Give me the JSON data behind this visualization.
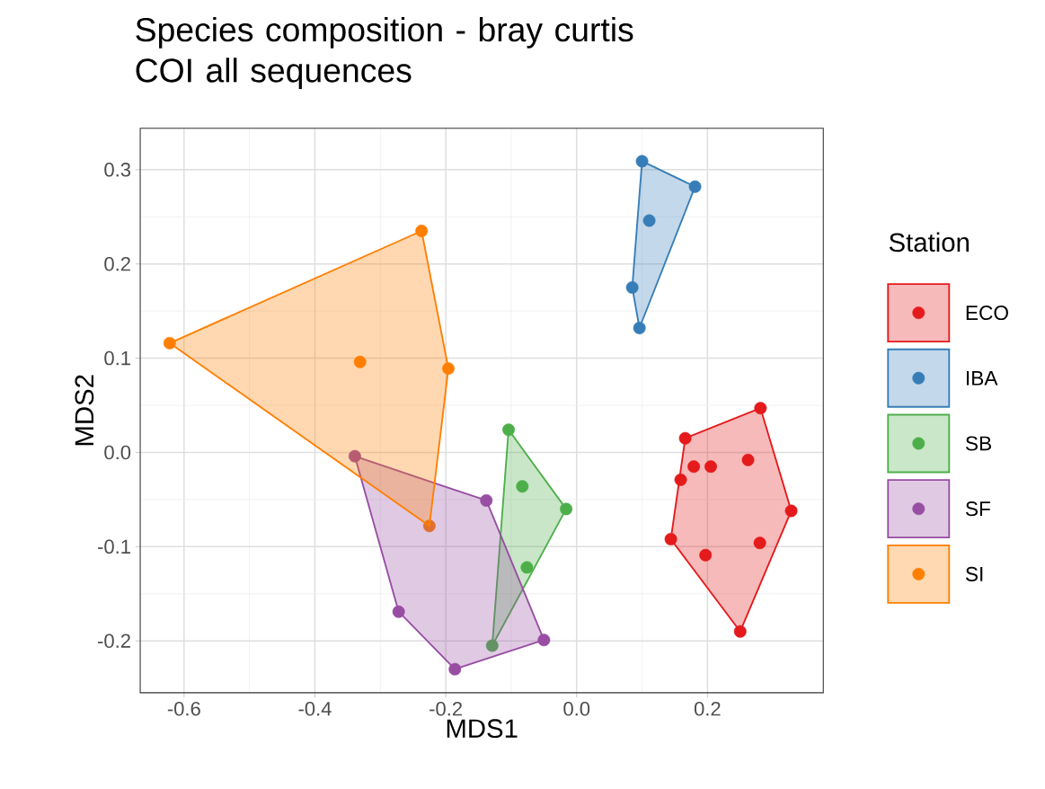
{
  "chart_data": {
    "type": "scatter",
    "title": "Species composition - bray curtis\nCOI all sequences",
    "xlabel": "MDS1",
    "ylabel": "MDS2",
    "legend_title": "Station",
    "xlim": [
      -0.667,
      0.377
    ],
    "ylim": [
      -0.255,
      0.344
    ],
    "xticks": [
      -0.6,
      -0.4,
      -0.2,
      {
        "value": 0,
        "label": "0.0"
      },
      0.2
    ],
    "yticks": [
      -0.2,
      -0.1,
      {
        "value": 0,
        "label": "0.0"
      },
      0.1,
      0.2,
      0.3
    ],
    "grid": true,
    "legend": "right",
    "marker": "circle",
    "series": [
      {
        "name": "ECO",
        "color": "#e41a1c",
        "x": [
          0.166,
          0.179,
          0.205,
          0.159,
          0.262,
          0.281,
          0.328,
          0.28,
          0.144,
          0.197,
          0.25
        ],
        "values": [
          0.015,
          -0.015,
          -0.015,
          -0.029,
          -0.008,
          0.047,
          -0.062,
          -0.096,
          -0.092,
          -0.109,
          -0.19
        ]
      },
      {
        "name": "IBA",
        "color": "#377eb8",
        "x": [
          0.1,
          0.181,
          0.111,
          0.085,
          0.096
        ],
        "values": [
          0.309,
          0.282,
          0.246,
          0.175,
          0.132
        ]
      },
      {
        "name": "SB",
        "color": "#4daf4a",
        "x": [
          -0.104,
          -0.083,
          -0.016,
          -0.076,
          -0.129
        ],
        "values": [
          0.024,
          -0.036,
          -0.06,
          -0.122,
          -0.205
        ]
      },
      {
        "name": "SF",
        "color": "#984ea3",
        "x": [
          -0.339,
          -0.138,
          -0.272,
          -0.186,
          -0.05
        ],
        "values": [
          -0.004,
          -0.051,
          -0.169,
          -0.23,
          -0.199
        ]
      },
      {
        "name": "SI",
        "color": "#ff7f00",
        "x": [
          -0.237,
          -0.622,
          -0.331,
          -0.196,
          -0.225
        ],
        "values": [
          0.235,
          0.116,
          0.096,
          0.089,
          -0.078
        ]
      }
    ]
  }
}
